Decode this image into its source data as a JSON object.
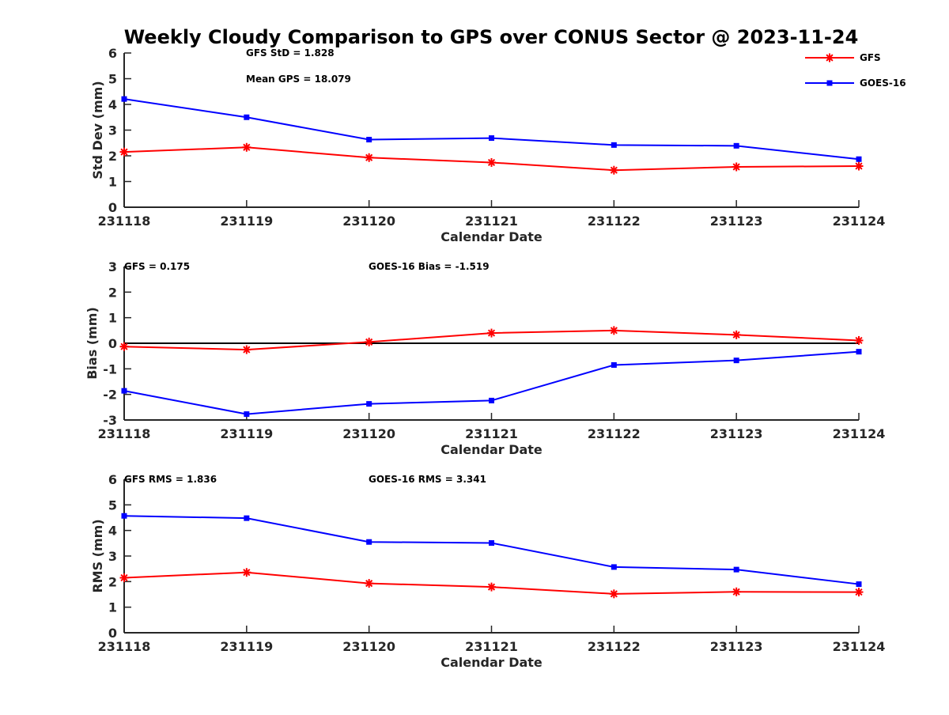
{
  "title": "Weekly Cloudy Comparison to GPS over CONUS Sector @ 2023-11-24",
  "legend": {
    "placement": "top-right",
    "items": [
      {
        "label": "GFS",
        "color": "#ff0000",
        "marker": "asterisk"
      },
      {
        "label": "GOES-16",
        "color": "#0000ff",
        "marker": "square"
      }
    ]
  },
  "chart_data": [
    {
      "type": "line",
      "xlabel": "Calendar Date",
      "ylabel": "Std Dev (mm)",
      "ylim": [
        0,
        6
      ],
      "yticks": [
        "0",
        "1",
        "2",
        "3",
        "4",
        "5",
        "6"
      ],
      "x": [
        "231118",
        "231119",
        "231120",
        "231121",
        "231122",
        "231123",
        "231124"
      ],
      "zero_line": false,
      "annotations": [
        "GFS StD = 1.828",
        "Mean GPS = 18.079"
      ],
      "series": [
        {
          "name": "GFS",
          "color": "#ff0000",
          "marker": "asterisk",
          "values": [
            2.15,
            2.33,
            1.93,
            1.74,
            1.44,
            1.57,
            1.6
          ]
        },
        {
          "name": "GOES-16",
          "color": "#0000ff",
          "marker": "square",
          "values": [
            4.21,
            3.5,
            2.63,
            2.69,
            2.42,
            2.39,
            1.87
          ]
        }
      ]
    },
    {
      "type": "line",
      "xlabel": "Calendar Date",
      "ylabel": "Bias (mm)",
      "ylim": [
        -3,
        3
      ],
      "yticks": [
        "-3",
        "-2",
        "-1",
        "0",
        "1",
        "2",
        "3"
      ],
      "x": [
        "231118",
        "231119",
        "231120",
        "231121",
        "231122",
        "231123",
        "231124"
      ],
      "zero_line": true,
      "annotations": [
        "GFS = 0.175",
        "GOES-16 Bias  = -1.519"
      ],
      "series": [
        {
          "name": "GFS",
          "color": "#ff0000",
          "marker": "asterisk",
          "values": [
            -0.13,
            -0.25,
            0.05,
            0.4,
            0.5,
            0.33,
            0.11
          ]
        },
        {
          "name": "GOES-16",
          "color": "#0000ff",
          "marker": "square",
          "values": [
            -1.86,
            -2.77,
            -2.37,
            -2.24,
            -0.85,
            -0.67,
            -0.33
          ]
        }
      ]
    },
    {
      "type": "line",
      "xlabel": "Calendar Date",
      "ylabel": "RMS (mm)",
      "ylim": [
        0,
        6
      ],
      "yticks": [
        "0",
        "1",
        "2",
        "3",
        "4",
        "5",
        "6"
      ],
      "x": [
        "231118",
        "231119",
        "231120",
        "231121",
        "231122",
        "231123",
        "231124"
      ],
      "zero_line": false,
      "annotations": [
        "GFS RMS = 1.836",
        "GOES-16 RMS = 3.341"
      ],
      "series": [
        {
          "name": "GFS",
          "color": "#ff0000",
          "marker": "asterisk",
          "values": [
            2.15,
            2.36,
            1.93,
            1.79,
            1.52,
            1.6,
            1.59
          ]
        },
        {
          "name": "GOES-16",
          "color": "#0000ff",
          "marker": "square",
          "values": [
            4.57,
            4.48,
            3.55,
            3.51,
            2.57,
            2.47,
            1.9
          ]
        }
      ]
    }
  ]
}
